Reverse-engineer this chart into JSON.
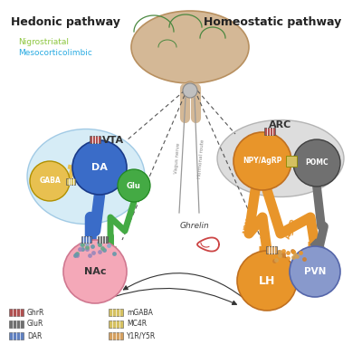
{
  "background_color": "#ffffff",
  "hedonic_label": "Hedonic pathway",
  "homeostatic_label": "Homeostatic pathway",
  "nigrostriatal_label": "Nigrostriatal",
  "mesocorticolimbic_label": "Mesocorticolimbic",
  "nigrostriatal_color": "#8dc63f",
  "mesocorticolimbic_color": "#29abe2",
  "brain_color": "#d4b896",
  "brain_edge": "#b89060",
  "vta_color": "#cce8f4",
  "vta_edge": "#90c0e0",
  "arc_color": "#d0d0d0",
  "arc_edge": "#a0a0a0",
  "da_color": "#3a6cc8",
  "da_edge": "#1a3a88",
  "nac_color": "#f4a8b8",
  "nac_edge": "#d07890",
  "gaba_color": "#e8c050",
  "gaba_edge": "#b09000",
  "glu_color": "#44aa44",
  "glu_edge": "#228822",
  "npy_agrp_color": "#e8952a",
  "npy_agrp_edge": "#c07020",
  "pomc_color": "#707070",
  "pomc_edge": "#404040",
  "lh_color": "#e8952a",
  "lh_edge": "#c07020",
  "pvn_color": "#8899cc",
  "pvn_edge": "#5566aa",
  "ghcr_color": "#b05050",
  "glur_color": "#707070",
  "dar_color": "#6080c0",
  "mgaba_color": "#d4c060",
  "mc4r_color": "#d4c060",
  "y1r_color": "#d4a060",
  "ghrelin_color": "#cc4444",
  "line_color": "#333333",
  "dashed_color": "#555555"
}
